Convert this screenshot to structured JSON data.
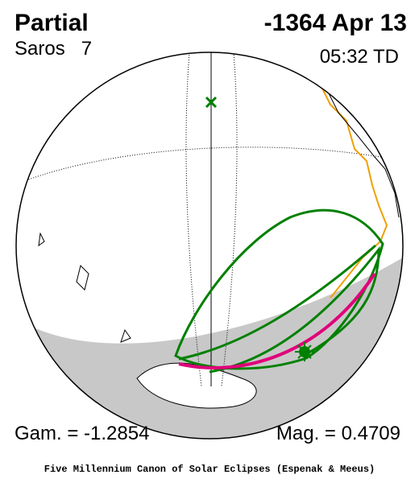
{
  "header": {
    "title": "Partial",
    "date": "-1364 Apr 13",
    "saros": "Saros   7",
    "time": "05:32 TD"
  },
  "footer": {
    "gamma": "Gam. = -1.2854",
    "magnitude": "Mag. = 0.4709",
    "credit": "Five Millennium Canon of Solar Eclipses (Espenak & Meeus)"
  }
}
